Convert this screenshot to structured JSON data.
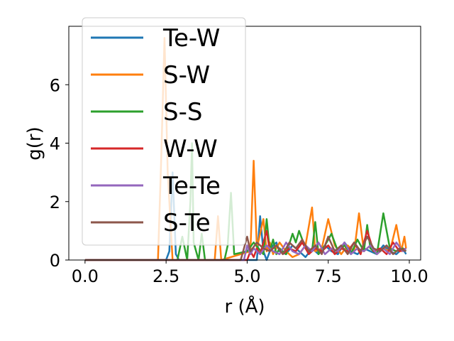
{
  "chart_data": {
    "type": "line",
    "xlabel": "r (Å)",
    "ylabel": "g(r)",
    "xlim": [
      -0.5,
      10.35
    ],
    "ylim": [
      0,
      8.0
    ],
    "x_ticks": [
      "0.0",
      "2.5",
      "5.0",
      "7.5",
      "10.0"
    ],
    "y_ticks": [
      "0",
      "2",
      "4",
      "6"
    ],
    "grid": false,
    "legend_position": "top-left",
    "series": [
      {
        "name": "Te-W",
        "color": "#1f77b4",
        "x": [
          0.0,
          2.5,
          2.6,
          2.7,
          2.8,
          2.9,
          5.3,
          5.4,
          5.5,
          5.6,
          5.7,
          5.8,
          5.9,
          6.0,
          6.2,
          6.4,
          6.6,
          6.8,
          7.0,
          7.2,
          7.4,
          7.6,
          7.8,
          8.0,
          8.2,
          8.4,
          8.6,
          8.8,
          9.0,
          9.2,
          9.4,
          9.6,
          9.8,
          9.9
        ],
        "y": [
          0.0,
          0.0,
          0.3,
          3.0,
          0.2,
          0.0,
          0.0,
          1.5,
          0.3,
          0.0,
          0.3,
          0.5,
          0.6,
          0.3,
          0.2,
          0.5,
          0.3,
          0.1,
          0.4,
          0.2,
          0.5,
          0.3,
          0.2,
          0.6,
          0.3,
          0.2,
          0.4,
          0.3,
          0.2,
          0.5,
          0.3,
          0.2,
          0.4,
          0.2
        ]
      },
      {
        "name": "S-W",
        "color": "#ff7f0e",
        "x": [
          0.0,
          2.25,
          2.35,
          2.45,
          2.55,
          2.7,
          4.0,
          4.1,
          4.2,
          5.1,
          5.2,
          5.3,
          5.5,
          5.6,
          5.7,
          5.8,
          6.0,
          6.2,
          6.4,
          6.6,
          6.8,
          7.0,
          7.1,
          7.3,
          7.5,
          7.7,
          7.9,
          8.1,
          8.3,
          8.45,
          8.6,
          8.8,
          9.0,
          9.2,
          9.4,
          9.6,
          9.75,
          9.85,
          9.9
        ],
        "y": [
          0.0,
          0.0,
          3.5,
          7.6,
          3.0,
          0.0,
          0.0,
          1.5,
          0.0,
          0.3,
          3.4,
          0.4,
          1.4,
          0.3,
          0.6,
          0.2,
          0.6,
          0.3,
          0.1,
          0.2,
          0.5,
          1.8,
          0.3,
          0.4,
          1.4,
          0.5,
          0.2,
          0.5,
          0.3,
          1.6,
          0.3,
          0.5,
          0.2,
          0.4,
          0.3,
          1.2,
          0.3,
          0.8,
          0.4
        ]
      },
      {
        "name": "S-S",
        "color": "#2ca02c",
        "x": [
          0.0,
          2.85,
          3.0,
          3.15,
          3.25,
          3.3,
          3.35,
          3.5,
          3.6,
          3.7,
          4.3,
          4.4,
          4.5,
          4.6,
          5.0,
          5.2,
          5.5,
          5.6,
          5.7,
          5.8,
          5.9,
          6.0,
          6.2,
          6.4,
          6.5,
          6.6,
          6.8,
          7.0,
          7.1,
          7.2,
          7.4,
          7.6,
          7.8,
          8.0,
          8.2,
          8.4,
          8.6,
          8.7,
          8.8,
          9.0,
          9.2,
          9.4,
          9.6,
          9.8,
          9.9
        ],
        "y": [
          0.0,
          0.0,
          0.8,
          0.0,
          2.0,
          4.0,
          0.6,
          0.0,
          0.9,
          0.0,
          0.0,
          0.5,
          2.3,
          0.2,
          0.3,
          0.6,
          0.2,
          1.4,
          0.3,
          0.7,
          0.2,
          0.4,
          0.2,
          0.9,
          0.6,
          1.0,
          0.4,
          0.3,
          1.3,
          0.2,
          0.5,
          0.9,
          0.3,
          0.5,
          0.2,
          0.7,
          0.3,
          1.2,
          0.4,
          0.2,
          1.6,
          0.4,
          0.3,
          0.4,
          0.3
        ]
      },
      {
        "name": "W-W",
        "color": "#d62728",
        "x": [
          0.0,
          5.0,
          5.1,
          5.2,
          5.3,
          5.4,
          5.5,
          5.6,
          5.7,
          5.9,
          6.1,
          6.3,
          6.5,
          6.7,
          6.9,
          7.1,
          7.3,
          7.5,
          7.7,
          7.9,
          8.1,
          8.3,
          8.5,
          8.7,
          8.9,
          9.1,
          9.3,
          9.5,
          9.7,
          9.9
        ],
        "y": [
          0.0,
          0.0,
          0.3,
          0.1,
          0.4,
          0.2,
          0.6,
          1.0,
          0.3,
          0.5,
          0.2,
          0.4,
          0.3,
          0.6,
          0.2,
          0.4,
          0.3,
          0.5,
          0.2,
          0.4,
          0.3,
          0.6,
          0.2,
          1.0,
          0.3,
          0.4,
          0.2,
          0.6,
          0.3,
          0.4
        ]
      },
      {
        "name": "Te-Te",
        "color": "#9467bd",
        "x": [
          0.0,
          4.9,
          5.0,
          5.1,
          5.2,
          5.4,
          5.6,
          5.8,
          6.0,
          6.2,
          6.4,
          6.6,
          6.8,
          7.0,
          7.2,
          7.4,
          7.6,
          7.8,
          8.0,
          8.2,
          8.4,
          8.6,
          8.8,
          9.0,
          9.2,
          9.4,
          9.6,
          9.8,
          9.9
        ],
        "y": [
          0.0,
          0.0,
          0.5,
          0.2,
          0.4,
          0.2,
          0.5,
          0.3,
          0.2,
          0.6,
          0.3,
          0.2,
          0.5,
          0.3,
          0.6,
          0.2,
          0.4,
          0.3,
          0.6,
          0.2,
          0.4,
          0.3,
          0.5,
          0.2,
          0.4,
          0.2,
          0.6,
          0.3,
          0.4
        ]
      },
      {
        "name": "S-Te",
        "color": "#8c564b",
        "x": [
          0.0,
          4.8,
          4.9,
          5.0,
          5.1,
          5.3,
          5.5,
          5.7,
          5.9,
          6.1,
          6.3,
          6.5,
          6.7,
          6.9,
          7.1,
          7.3,
          7.5,
          7.7,
          7.9,
          8.1,
          8.3,
          8.5,
          8.7,
          8.9,
          9.1,
          9.3,
          9.5,
          9.7,
          9.9
        ],
        "y": [
          0.0,
          0.0,
          0.4,
          0.8,
          0.3,
          0.6,
          0.4,
          0.3,
          0.5,
          0.2,
          0.6,
          0.4,
          0.7,
          0.3,
          0.5,
          0.2,
          0.8,
          0.3,
          0.5,
          0.2,
          0.6,
          0.3,
          0.8,
          0.4,
          0.3,
          0.5,
          0.2,
          0.4,
          0.3
        ]
      }
    ]
  }
}
